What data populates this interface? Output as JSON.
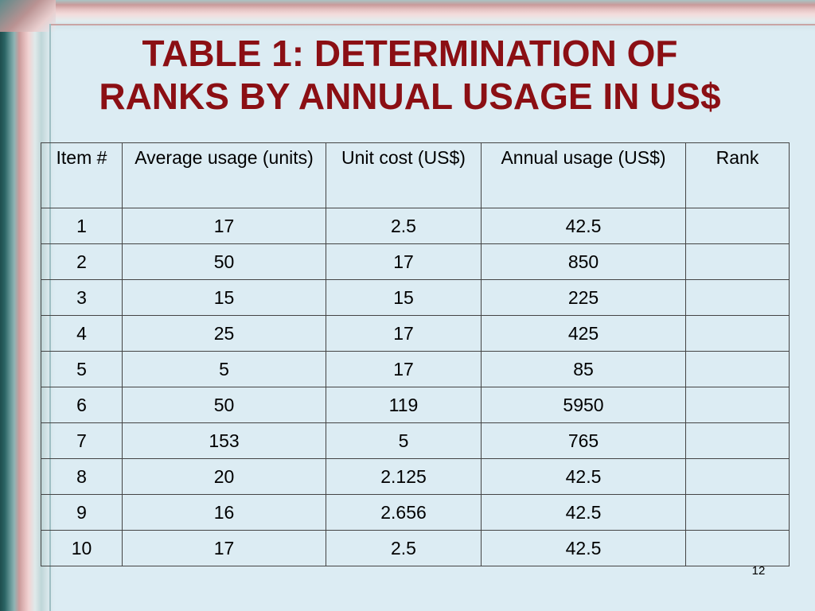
{
  "slide": {
    "title_line1": "TABLE 1: DETERMINATION OF",
    "title_line2": "RANKS BY ANNUAL USAGE IN US$",
    "page_number": "12",
    "colors": {
      "title": "#8b0f14",
      "background": "#dcecf3"
    }
  },
  "table": {
    "headers": [
      "Item #",
      "Average usage (units)",
      "Unit cost (US$)",
      "Annual usage (US$)",
      "Rank"
    ],
    "rows": [
      [
        "1",
        "17",
        "2.5",
        "42.5",
        ""
      ],
      [
        "2",
        "50",
        "17",
        "850",
        ""
      ],
      [
        "3",
        "15",
        "15",
        "225",
        ""
      ],
      [
        "4",
        "25",
        "17",
        "425",
        ""
      ],
      [
        "5",
        "5",
        "17",
        "85",
        ""
      ],
      [
        "6",
        "50",
        "119",
        "5950",
        ""
      ],
      [
        "7",
        "153",
        "5",
        "765",
        ""
      ],
      [
        "8",
        "20",
        "2.125",
        "42.5",
        ""
      ],
      [
        "9",
        "16",
        "2.656",
        "42.5",
        ""
      ],
      [
        "10",
        "17",
        "2.5",
        "42.5",
        ""
      ]
    ]
  }
}
